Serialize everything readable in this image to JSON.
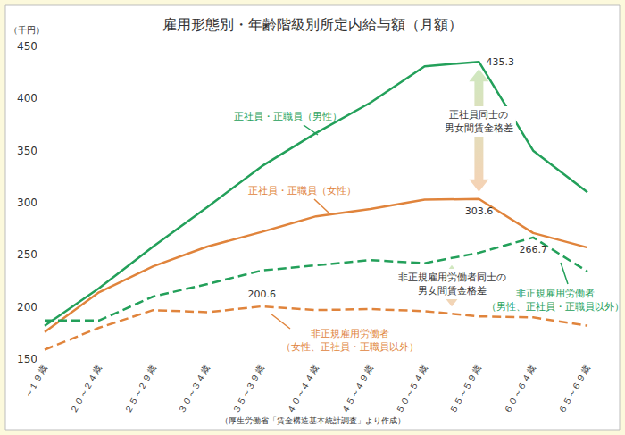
{
  "chart_data": {
    "type": "line",
    "title": "雇用形態別・年齢階級別所定内給与額（月額）",
    "ylabel": "（千円）",
    "caption": "（厚生労働省「賃金構造基本統計調査」より作成）",
    "categories": [
      "～１９歳",
      "２０～２４歳",
      "２５～２９歳",
      "３０～３４歳",
      "３５～３９歳",
      "４０～４４歳",
      "４５～４９歳",
      "５０～５４歳",
      "５５～５９歳",
      "６０～６４歳",
      "６５～６９歳"
    ],
    "ylim": [
      150,
      450
    ],
    "yticks": [
      150,
      200,
      250,
      300,
      350,
      400,
      450
    ],
    "grid": false,
    "series": [
      {
        "name": "正社員・正職員（男性）",
        "color": "#23a05a",
        "line_style": "solid",
        "values": [
          182,
          218,
          258,
          296,
          335,
          367,
          396,
          431,
          435.3,
          350,
          310
        ],
        "value_labels": [
          null,
          null,
          null,
          null,
          null,
          null,
          null,
          null,
          "435.3",
          null,
          null
        ]
      },
      {
        "name": "正社員・正職員（女性）",
        "color": "#e0843c",
        "line_style": "solid",
        "values": [
          176,
          214,
          239,
          258,
          272,
          287,
          294,
          303,
          303.6,
          271,
          257
        ],
        "value_labels": [
          null,
          null,
          null,
          null,
          null,
          null,
          null,
          null,
          "303.6",
          null,
          null
        ]
      },
      {
        "name": "非正規雇用労働者\n（男性、正社員・正職員以外）",
        "color": "#23a05a",
        "line_style": "dashed",
        "values": [
          187,
          187,
          210,
          222,
          235,
          240,
          245,
          242,
          252,
          266.7,
          234
        ],
        "value_labels": [
          null,
          null,
          null,
          null,
          null,
          null,
          null,
          null,
          null,
          "266.7",
          null
        ]
      },
      {
        "name": "非正規雇用労働者\n（女性、正社員・正職員以外）",
        "color": "#e0843c",
        "line_style": "dashed",
        "values": [
          159,
          180,
          197,
          195,
          200.6,
          197,
          198,
          196,
          191,
          190,
          182
        ],
        "value_labels": [
          null,
          null,
          null,
          null,
          "200.6",
          null,
          null,
          null,
          null,
          null,
          null
        ]
      }
    ],
    "annotations": [
      "正社員同士の\n男女間賃金格差",
      "非正規雇用労働者同士の\n男女間賃金格差"
    ]
  }
}
